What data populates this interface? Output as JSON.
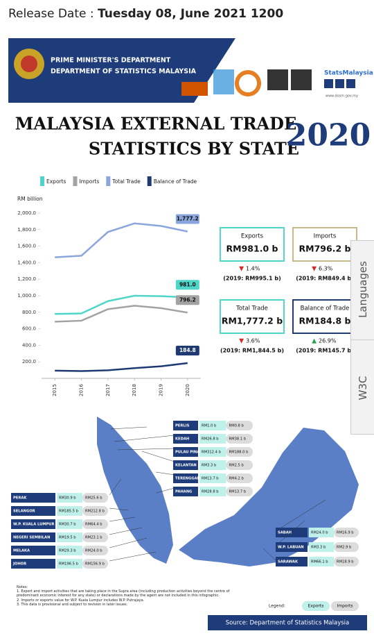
{
  "release": {
    "label": "Release Date :",
    "date": "Tuesday 08, June 2021 1200"
  },
  "header": {
    "line1": "PRIME MINISTER'S DEPARTMENT",
    "line2": "DEPARTMENT OF STATISTICS MALAYSIA",
    "brand": "StatsMalaysia",
    "url": "www.dosm.gov.my"
  },
  "title": {
    "line1": "MALAYSIA EXTERNAL TRADE",
    "line2": "STATISTICS BY STATE",
    "year": "2020"
  },
  "chart_data": {
    "type": "line",
    "y_label": "RM billion",
    "x": [
      2015,
      2016,
      2017,
      2018,
      2019,
      2020
    ],
    "xlim": [
      2014.5,
      2020.5
    ],
    "xticks": [
      2015,
      2016,
      2017,
      2018,
      2019,
      2020
    ],
    "ylim": [
      0,
      2000
    ],
    "yticks": [
      {
        "value": 200,
        "label": "200.0"
      },
      {
        "value": 400,
        "label": "400.0"
      },
      {
        "value": 600,
        "label": "600.0"
      },
      {
        "value": 800,
        "label": "800.0"
      },
      {
        "value": 1000,
        "label": "1,000.0"
      },
      {
        "value": 1200,
        "label": "1,200.0"
      },
      {
        "value": 1400,
        "label": "1,400.0"
      },
      {
        "value": 1600,
        "label": "1,600.0"
      },
      {
        "value": 1800,
        "label": "1,800.0"
      },
      {
        "value": 2000,
        "label": "2,000.0"
      }
    ],
    "grid": false,
    "series": [
      {
        "name": "Exports",
        "color": "#4fd6c8",
        "values": [
          779,
          786,
          935,
          1000,
          995.1,
          981.0
        ],
        "value_labels": [
          null,
          null,
          null,
          null,
          null,
          "981.0"
        ]
      },
      {
        "name": "Imports",
        "color": "#a3a3a3",
        "values": [
          686,
          698,
          837,
          879,
          849.4,
          796.2
        ],
        "value_labels": [
          null,
          null,
          null,
          null,
          null,
          "796.2"
        ]
      },
      {
        "name": "Total Trade",
        "color": "#8aa6dc",
        "values": [
          1465,
          1484,
          1772,
          1876,
          1844.5,
          1777.2
        ],
        "value_labels": [
          null,
          null,
          null,
          null,
          null,
          "1,777.2"
        ]
      },
      {
        "name": "Balance of Trade",
        "color": "#1f3a73",
        "values": [
          94,
          88,
          98,
          124,
          145.7,
          184.8
        ],
        "value_labels": [
          null,
          null,
          null,
          null,
          null,
          "184.8"
        ]
      }
    ]
  },
  "stats": [
    {
      "title": "Exports",
      "value": "RM981.0 b",
      "arrow": "▼",
      "change": "1.4%",
      "previous": "(2019: RM995.1 b)"
    },
    {
      "title": "Imports",
      "value": "RM796.2 b",
      "arrow": "▼",
      "change": "6.3%",
      "previous": "(2019: RM849.4 b)"
    },
    {
      "title": "Total Trade",
      "value": "RM1,777.2 b",
      "arrow": "▼",
      "change": "3.6%",
      "previous": "(2019: RM1,844.5 b)"
    },
    {
      "title": "Balance of Trade",
      "value": "RM184.8 b",
      "arrow": "▲",
      "change": "26.9%",
      "previous": "(2019: RM145.7 b)"
    }
  ],
  "states": [
    {
      "name": "PERLIS",
      "exports": "RM1.0 b",
      "imports": "RM0.8 b"
    },
    {
      "name": "KEDAH",
      "exports": "RM26.8 b",
      "imports": "RM38.1 b"
    },
    {
      "name": "PULAU PINANG",
      "exports": "RM312.4 b",
      "imports": "RM188.0 b"
    },
    {
      "name": "KELANTAN",
      "exports": "RM3.3 b",
      "imports": "RM2.5 b"
    },
    {
      "name": "TERENGGANU",
      "exports": "RM13.7 b",
      "imports": "RM4.2 b"
    },
    {
      "name": "PAHANG",
      "exports": "RM28.8 b",
      "imports": "RM13.7 b"
    },
    {
      "name": "PERAK",
      "exports": "RM30.9 b",
      "imports": "RM25.6 b"
    },
    {
      "name": "SELANGOR",
      "exports": "RM185.5 b",
      "imports": "RM212.8 b"
    },
    {
      "name": "W.P. KUALA LUMPUR",
      "exports": "RM30.7 b",
      "imports": "RM64.4 b"
    },
    {
      "name": "NEGERI SEMBILAN",
      "exports": "RM19.5 b",
      "imports": "RM23.1 b"
    },
    {
      "name": "MELAKA",
      "exports": "RM29.3 b",
      "imports": "RM24.0 b"
    },
    {
      "name": "JOHOR",
      "exports": "RM196.5 b",
      "imports": "RM156.9 b"
    },
    {
      "name": "SABAH",
      "exports": "RM24.0 b",
      "imports": "RM16.9 b"
    },
    {
      "name": "W.P. LABUAN",
      "exports": "RM3.3 b",
      "imports": "RM2.9 b"
    },
    {
      "name": "SARAWAK",
      "exports": "RM66.1 b",
      "imports": "RM18.9 b"
    }
  ],
  "notes": {
    "heading": "Notes:",
    "items": [
      "1.  Export and import activities that are taking place in the Supra area (including production activities beyond the centre of predominant economic interest for any state) or declarations made by the agent are not included in this infographic.",
      "2.  Imports or exports value for W.P. Kuala Lumpur includes W.P. Putrajaya.",
      "3.  This data is provisional and subject to revision in later issues."
    ]
  },
  "legend": {
    "label": "Legend:",
    "exports": "Exports",
    "imports": "Imports"
  },
  "source": "Source: Department of Statistics Malaysia",
  "tabs": [
    "Languages",
    "W3C"
  ]
}
